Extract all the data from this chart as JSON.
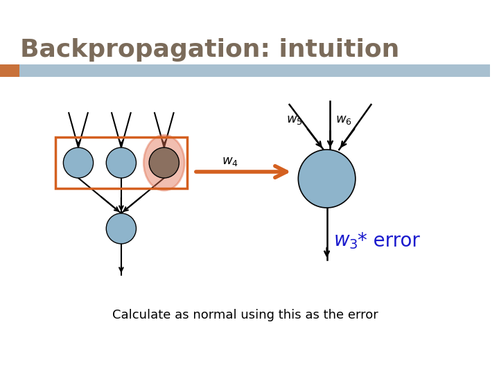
{
  "title": "Backpropagation: intuition",
  "title_fontsize": 26,
  "title_color": "#7B6B5A",
  "bg_color": "#FFFFFF",
  "header_bar_color": "#A8C0D0",
  "header_accent_color": "#C8713A",
  "subtitle": "Calculate as normal using this as the error",
  "subtitle_fontsize": 13,
  "node_color": "#8EB4CB",
  "node_outline": "#000000",
  "orange_ellipse_color": "#E07050",
  "orange_ellipse_alpha": 0.45,
  "orange_box_color": "#D46020",
  "dark_node_color": "#8B7060",
  "arrow_color": "#D46020",
  "line_color": "#000000",
  "w_label_color": "#000000",
  "w3_color": "#1A1ACD"
}
